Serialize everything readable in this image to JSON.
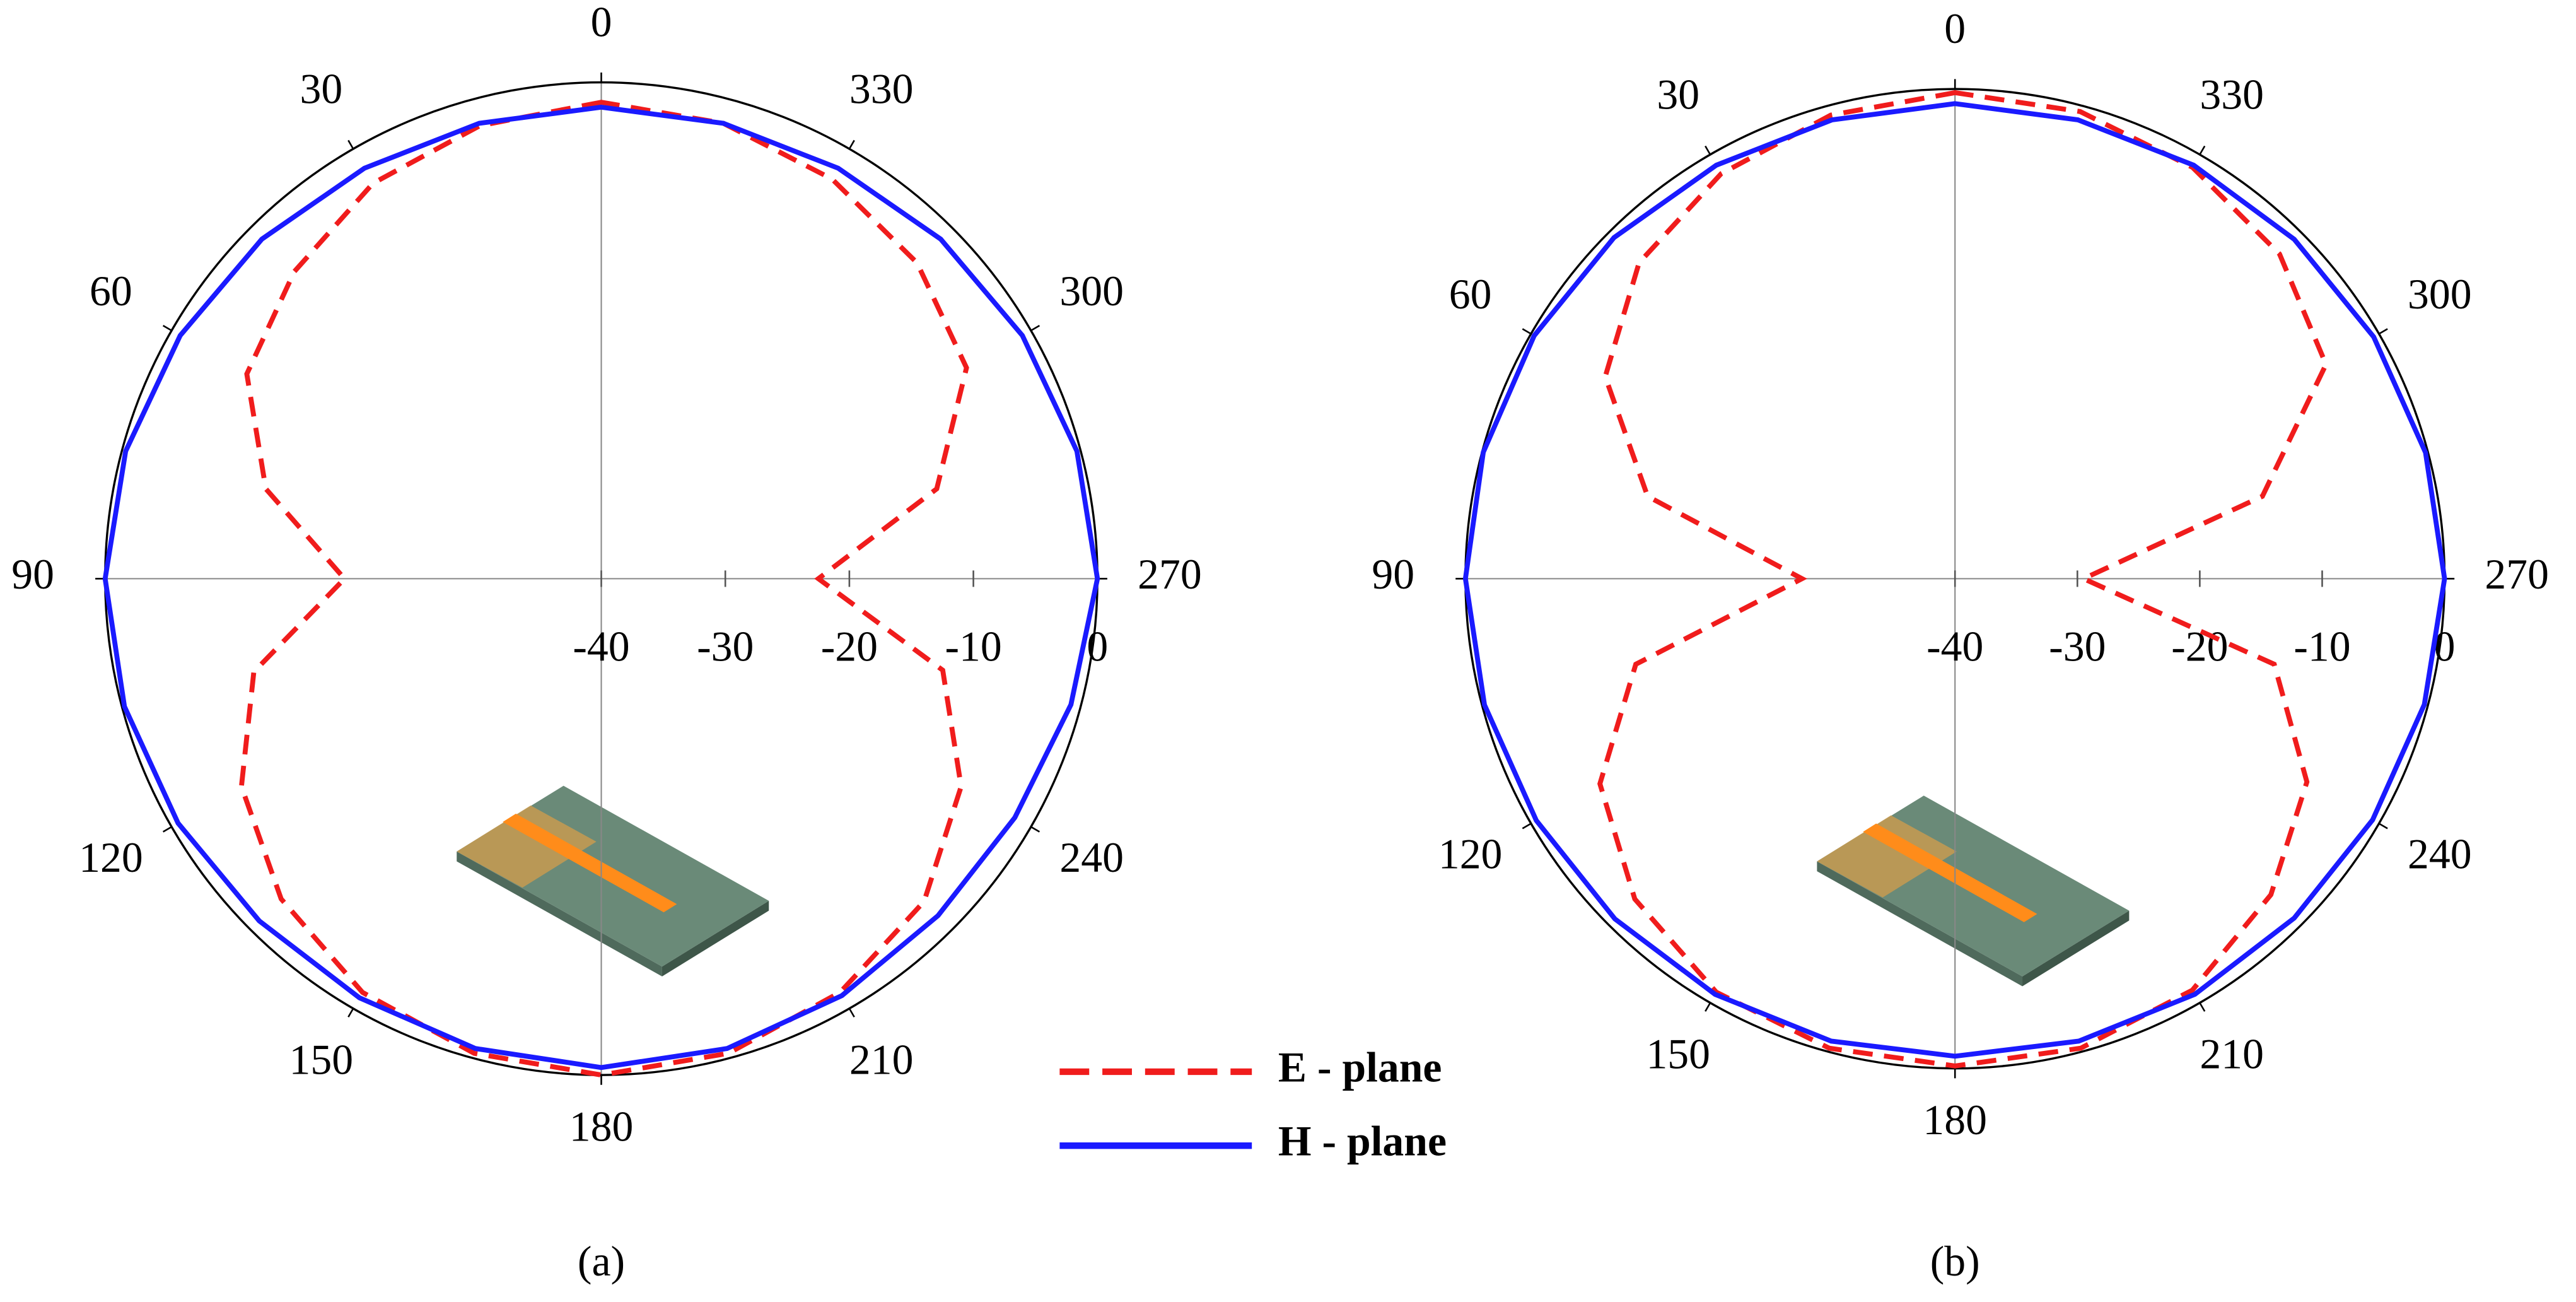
{
  "chart_data": [
    {
      "type": "polar",
      "caption": "(a)",
      "rlim": [
        -40,
        0
      ],
      "rticks": [
        -40,
        -30,
        -20,
        -10,
        0
      ],
      "thetaticks": [
        0,
        30,
        60,
        90,
        120,
        150,
        180,
        210,
        240,
        270,
        300,
        330
      ],
      "theta": [
        0,
        15,
        30,
        45,
        60,
        75,
        90,
        105,
        120,
        135,
        150,
        165,
        180,
        195,
        210,
        225,
        240,
        255,
        270,
        285,
        300,
        315,
        330,
        345
      ],
      "series": [
        {
          "name": "E - plane",
          "color": "#f01c1c",
          "dashed": true,
          "values": [
            -1.6,
            -2.2,
            -3.2,
            -5,
            -7,
            -12,
            -19.3,
            -11,
            -6.5,
            -3.5,
            -1.5,
            -0.4,
            0,
            -0.4,
            -1.5,
            -3.2,
            -6.5,
            -11.5,
            -22.5,
            -12,
            -6,
            -4,
            -2.8,
            -2
          ]
        },
        {
          "name": "H - plane",
          "color": "#1a1aff",
          "dashed": false,
          "values": [
            -2,
            -2,
            -1.8,
            -1.3,
            -0.8,
            -0.3,
            0,
            -0.2,
            -0.6,
            -1,
            -1,
            -0.8,
            -0.6,
            -0.8,
            -1.2,
            -1.6,
            -1.5,
            -0.8,
            0,
            -0.3,
            -0.8,
            -1.3,
            -1.8,
            -2
          ]
        }
      ]
    },
    {
      "type": "polar",
      "caption": "(b)",
      "rlim": [
        -40,
        0
      ],
      "rticks": [
        -40,
        -30,
        -20,
        -10,
        0
      ],
      "thetaticks": [
        0,
        30,
        60,
        90,
        120,
        150,
        180,
        210,
        240,
        270,
        300,
        330
      ],
      "theta": [
        0,
        15,
        30,
        45,
        60,
        75,
        90,
        105,
        120,
        135,
        150,
        165,
        180,
        195,
        210,
        225,
        240,
        255,
        270,
        285,
        300,
        315,
        330,
        345
      ],
      "series": [
        {
          "color": "#f01c1c",
          "dashed": true,
          "values": [
            -0.3,
            -0.8,
            -1.8,
            -3.5,
            -7,
            -14,
            -27.5,
            -13,
            -6.5,
            -3,
            -1,
            -0.3,
            -0.2,
            -0.3,
            -1.2,
            -3.5,
            -6.8,
            -13,
            -29.5,
            -14,
            -5,
            -2.5,
            -1.2,
            -0.5
          ]
        },
        {
          "color": "#1a1aff",
          "dashed": false,
          "values": [
            -1.2,
            -1.2,
            -1,
            -0.6,
            -0.3,
            -0.1,
            0,
            -0.2,
            -0.5,
            -0.7,
            -0.8,
            -0.9,
            -1,
            -0.9,
            -0.8,
            -0.8,
            -0.6,
            -0.3,
            0,
            -0.2,
            -0.5,
            -0.8,
            -1,
            -1.2
          ]
        }
      ]
    }
  ]
}
